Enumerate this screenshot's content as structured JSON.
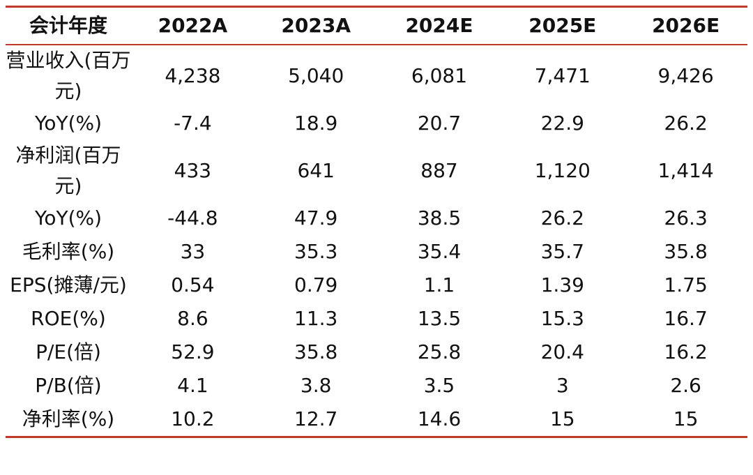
{
  "table": {
    "header": [
      "会计年度",
      "2022A",
      "2023A",
      "2024E",
      "2025E",
      "2026E"
    ],
    "rows": [
      [
        "营业收入(百万元)",
        "4,238",
        "5,040",
        "6,081",
        "7,471",
        "9,426"
      ],
      [
        "YoY(%)",
        "-7.4",
        "18.9",
        "20.7",
        "22.9",
        "26.2"
      ],
      [
        "净利润(百万元)",
        "433",
        "641",
        "887",
        "1,120",
        "1,414"
      ],
      [
        "YoY(%)",
        "-44.8",
        "47.9",
        "38.5",
        "26.2",
        "26.3"
      ],
      [
        "毛利率(%)",
        "33",
        "35.3",
        "35.4",
        "35.7",
        "35.8"
      ],
      [
        "EPS(摊薄/元)",
        "0.54",
        "0.79",
        "1.1",
        "1.39",
        "1.75"
      ],
      [
        "ROE(%)",
        "8.6",
        "11.3",
        "13.5",
        "15.3",
        "16.7"
      ],
      [
        "P/E(倍)",
        "52.9",
        "35.8",
        "25.8",
        "20.4",
        "16.2"
      ],
      [
        "P/B(倍)",
        "4.1",
        "3.8",
        "3.5",
        "3",
        "2.6"
      ],
      [
        "净利率(%)",
        "10.2",
        "12.7",
        "14.6",
        "15",
        "15"
      ]
    ]
  }
}
